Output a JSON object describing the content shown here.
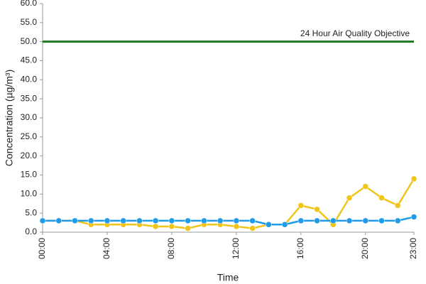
{
  "chart_data": {
    "type": "line",
    "y_label": "Concentration (µg/m³)",
    "x_label": "Time",
    "categories": [
      "00:00",
      null,
      null,
      null,
      "04:00",
      null,
      null,
      null,
      "08:00",
      null,
      null,
      null,
      "12:00",
      null,
      null,
      null,
      "16:00",
      null,
      null,
      null,
      "20:00",
      null,
      null,
      "23:00"
    ],
    "series": [
      {
        "color": "#f0c419",
        "values": [
          3,
          3,
          3,
          2,
          2,
          2,
          2,
          1.5,
          1.5,
          1,
          2,
          2,
          1.5,
          1,
          2,
          2,
          7,
          6,
          2,
          9,
          12,
          9,
          7,
          14
        ]
      },
      {
        "color": "#1e9be9",
        "values": [
          3,
          3,
          3,
          3,
          3,
          3,
          3,
          3,
          3,
          3,
          3,
          3,
          3,
          3,
          2,
          2,
          3,
          3,
          3,
          3,
          3,
          3,
          3,
          4
        ]
      }
    ],
    "objective": {
      "value": 50,
      "label": "24 Hour Air Quality Objective",
      "color": "#1f7a1f"
    },
    "ylim": [
      0,
      60
    ],
    "yticks": [
      {
        "value": 0,
        "label": "0.0"
      },
      {
        "value": 5,
        "label": "5.0"
      },
      {
        "value": 10,
        "label": "10.0"
      },
      {
        "value": 15,
        "label": "15.0"
      },
      {
        "value": 20,
        "label": "20.0"
      },
      {
        "value": 25,
        "label": "25.0"
      },
      {
        "value": 30,
        "label": "30.0"
      },
      {
        "value": 35,
        "label": "35.0"
      },
      {
        "value": 40,
        "label": "40.0"
      },
      {
        "value": 45,
        "label": "45.0"
      },
      {
        "value": 50,
        "label": "50.0"
      },
      {
        "value": 55,
        "label": "55.0"
      },
      {
        "value": 60,
        "label": "60.0"
      }
    ],
    "grid": false
  }
}
